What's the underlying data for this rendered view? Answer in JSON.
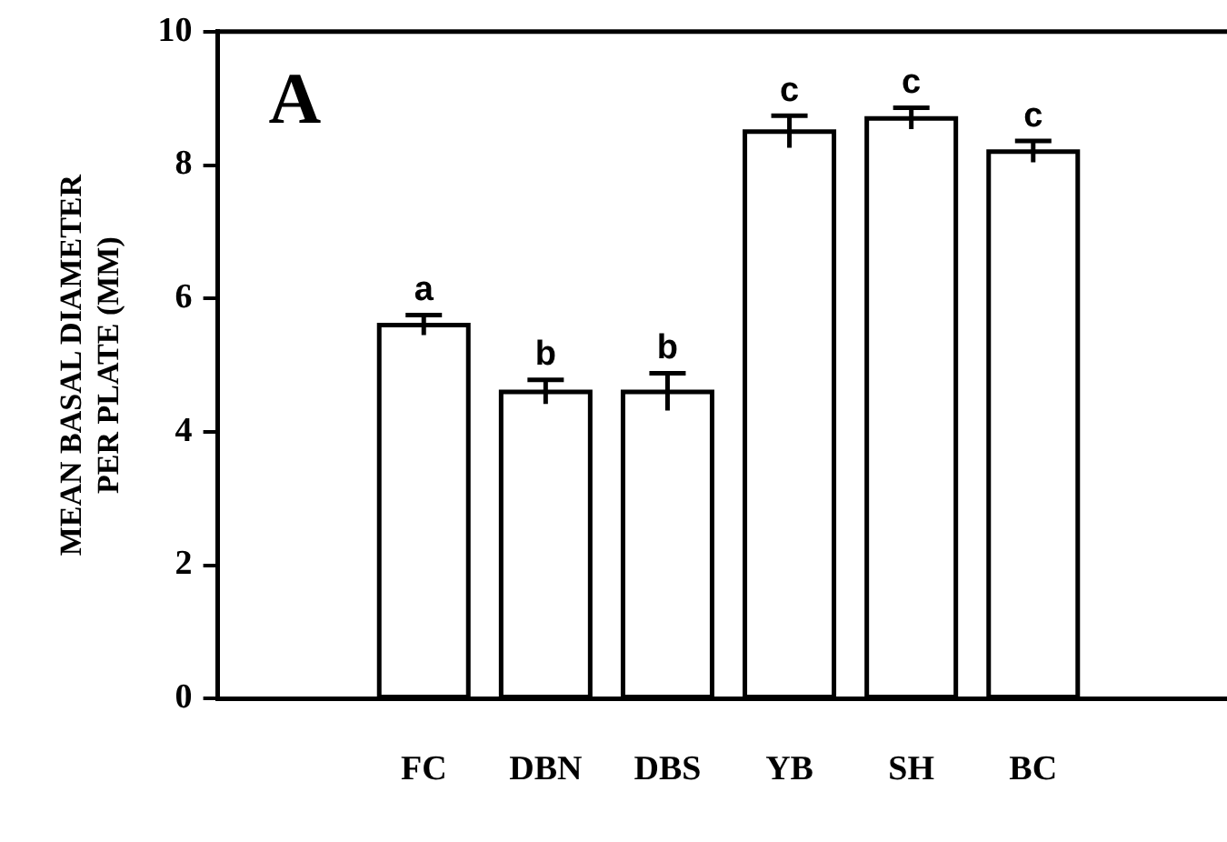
{
  "chart_data": {
    "type": "bar",
    "ylabel": "MEAN BASAL DIAMETER PER PLATE (MM)",
    "categories": [
      "FC",
      "DBN",
      "DBS",
      "YB",
      "SH",
      "BC"
    ],
    "values": [
      5.6,
      4.6,
      4.6,
      8.5,
      8.7,
      8.2
    ],
    "errors": [
      0.15,
      0.18,
      0.28,
      0.24,
      0.16,
      0.16
    ],
    "color": "#ffffff",
    "ylim": [
      0,
      10
    ],
    "yticks": [
      0,
      2,
      4,
      6,
      8,
      10
    ],
    "grid": false,
    "legend": false,
    "annotations": [
      "A",
      {
        "text": "a",
        "x": "FC",
        "y": 5.75
      },
      {
        "text": "b",
        "x": "DBN",
        "y": 4.78
      },
      {
        "text": "b",
        "x": "DBS",
        "y": 4.88
      },
      {
        "text": "c",
        "x": "YB",
        "y": 8.74
      },
      {
        "text": "c",
        "x": "SH",
        "y": 8.86
      },
      {
        "text": "c",
        "x": "BC",
        "y": 8.36
      }
    ]
  }
}
